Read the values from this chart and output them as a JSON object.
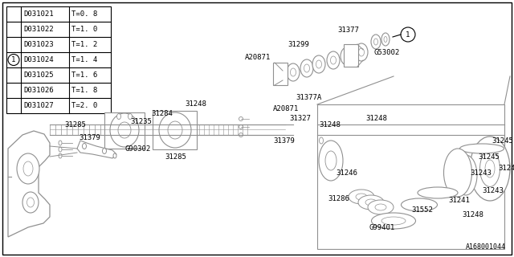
{
  "bg_color": "#ffffff",
  "border_color": "#000000",
  "gray": "#909090",
  "black": "#000000",
  "table": {
    "rows": [
      [
        "D031021",
        "T=0. 8"
      ],
      [
        "D031022",
        "T=1. 0"
      ],
      [
        "D031023",
        "T=1. 2"
      ],
      [
        "D031024",
        "T=1. 4"
      ],
      [
        "D031025",
        "T=1. 6"
      ],
      [
        "D031026",
        "T=1. 8"
      ],
      [
        "D031027",
        "T=2. 0"
      ]
    ],
    "circle_row": 3,
    "circle_label": "1"
  },
  "footer": "A168001044",
  "label_fs": 6.5,
  "table_fs": 6.5
}
